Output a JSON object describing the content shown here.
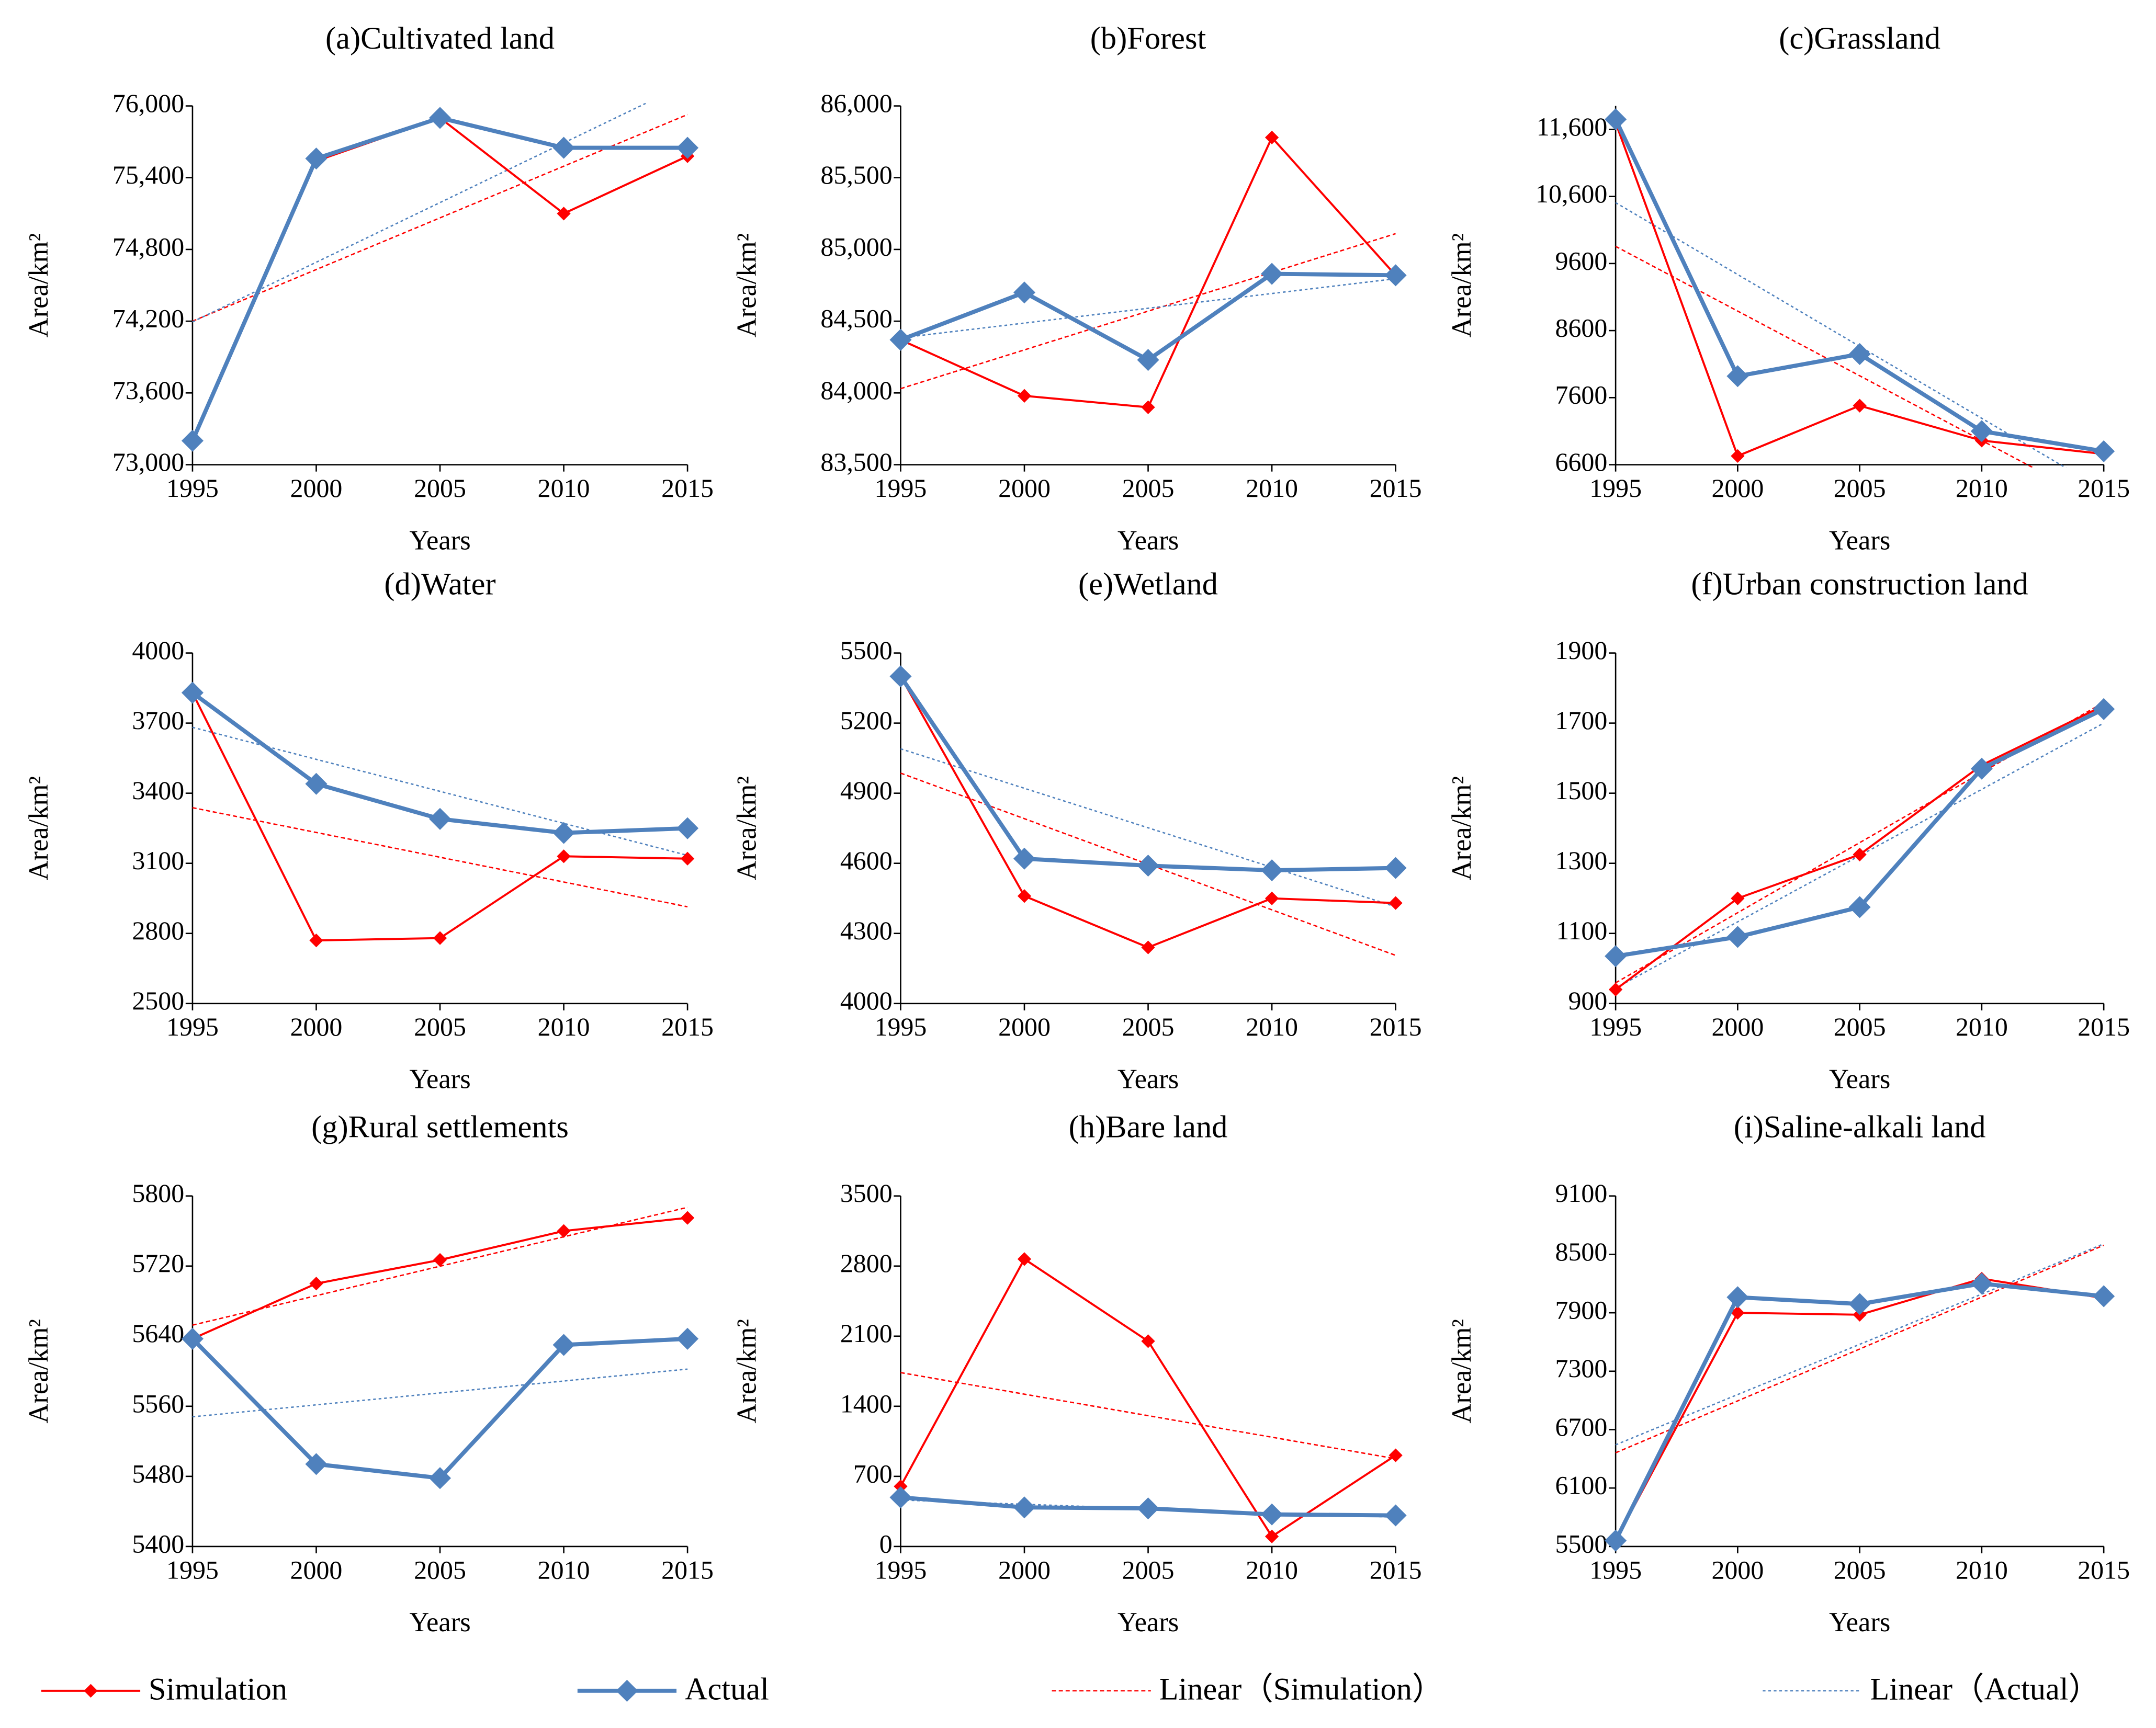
{
  "chart_data": [
    {
      "type": "line",
      "title": "(a)Cultivated land",
      "x_label": "Years",
      "y_label": "Area/km²",
      "x": [
        1995,
        2000,
        2005,
        2010,
        2015
      ],
      "xlim": [
        1995,
        2015
      ],
      "xticks": [
        1995,
        2000,
        2005,
        2010,
        2015
      ],
      "ylim": [
        73000,
        76000
      ],
      "yticks": [
        {
          "value": 73000,
          "label": "73,000"
        },
        {
          "value": 73600,
          "label": "73,600"
        },
        {
          "value": 74200,
          "label": "74,200"
        },
        {
          "value": 74800,
          "label": "74,800"
        },
        {
          "value": 75400,
          "label": "75,400"
        },
        {
          "value": 76000,
          "label": "76,000"
        }
      ],
      "series": [
        {
          "name": "Simulation",
          "trend_name": "Linear（Simulation）",
          "color": "#ff0000",
          "values": [
            73200,
            75540,
            75900,
            75100,
            75580
          ]
        },
        {
          "name": "Actual",
          "trend_name": "Linear（Actual）",
          "color": "#4f81bd",
          "values": [
            73200,
            75560,
            75900,
            75650,
            75650
          ]
        }
      ]
    },
    {
      "type": "line",
      "title": "(b)Forest",
      "x_label": "Years",
      "y_label": "Area/km²",
      "x": [
        1995,
        2000,
        2005,
        2010,
        2015
      ],
      "xlim": [
        1995,
        2015
      ],
      "xticks": [
        1995,
        2000,
        2005,
        2010,
        2015
      ],
      "ylim": [
        83500,
        86000
      ],
      "yticks": [
        {
          "value": 83500,
          "label": "83,500"
        },
        {
          "value": 84000,
          "label": "84,000"
        },
        {
          "value": 84500,
          "label": "84,500"
        },
        {
          "value": 85000,
          "label": "85,000"
        },
        {
          "value": 85500,
          "label": "85,500"
        },
        {
          "value": 86000,
          "label": "86,000"
        }
      ],
      "series": [
        {
          "name": "Simulation",
          "color": "#ff0000",
          "values": [
            84370,
            83980,
            83900,
            85780,
            84820
          ]
        },
        {
          "name": "Actual",
          "color": "#4f81bd",
          "values": [
            84370,
            84700,
            84230,
            84830,
            84820
          ]
        }
      ]
    },
    {
      "type": "line",
      "title": "(c)Grassland",
      "x_label": "Years",
      "y_label": "Area/km²",
      "x": [
        1995,
        2000,
        2005,
        2010,
        2015
      ],
      "xlim": [
        1995,
        2015
      ],
      "xticks": [
        1995,
        2000,
        2005,
        2010,
        2015
      ],
      "ylim": [
        6600,
        11950
      ],
      "yticks": [
        6600,
        7600,
        8600,
        9600,
        {
          "value": 10600,
          "label": "10,600"
        },
        {
          "value": 11600,
          "label": "11,600"
        }
      ],
      "series": [
        {
          "name": "Simulation",
          "color": "#ff0000",
          "values": [
            11700,
            6730,
            7480,
            6960,
            6760
          ]
        },
        {
          "name": "Actual",
          "color": "#4f81bd",
          "values": [
            11750,
            7920,
            8250,
            7100,
            6800
          ]
        }
      ]
    },
    {
      "type": "line",
      "title": "(d)Water",
      "x_label": "Years",
      "y_label": "Area/km²",
      "x": [
        1995,
        2000,
        2005,
        2010,
        2015
      ],
      "xlim": [
        1995,
        2015
      ],
      "xticks": [
        1995,
        2000,
        2005,
        2010,
        2015
      ],
      "ylim": [
        2500,
        4000
      ],
      "yticks": [
        2500,
        2800,
        3100,
        3400,
        3700,
        4000
      ],
      "series": [
        {
          "name": "Simulation",
          "color": "#ff0000",
          "values": [
            3830,
            2770,
            2780,
            3130,
            3120
          ]
        },
        {
          "name": "Actual",
          "color": "#4f81bd",
          "values": [
            3830,
            3440,
            3290,
            3230,
            3250
          ]
        }
      ]
    },
    {
      "type": "line",
      "title": "(e)Wetland",
      "x_label": "Years",
      "y_label": "Area/km²",
      "x": [
        1995,
        2000,
        2005,
        2010,
        2015
      ],
      "xlim": [
        1995,
        2015
      ],
      "xticks": [
        1995,
        2000,
        2005,
        2010,
        2015
      ],
      "ylim": [
        4000,
        5500
      ],
      "yticks": [
        4000,
        4300,
        4600,
        4900,
        5200,
        5500
      ],
      "series": [
        {
          "name": "Simulation",
          "color": "#ff0000",
          "values": [
            5400,
            4460,
            4240,
            4450,
            4430
          ]
        },
        {
          "name": "Actual",
          "color": "#4f81bd",
          "values": [
            5400,
            4620,
            4590,
            4570,
            4580
          ]
        }
      ]
    },
    {
      "type": "line",
      "title": "(f)Urban construction land",
      "x_label": "Years",
      "y_label": "Area/km²",
      "x": [
        1995,
        2000,
        2005,
        2010,
        2015
      ],
      "xlim": [
        1995,
        2015
      ],
      "xticks": [
        1995,
        2000,
        2005,
        2010,
        2015
      ],
      "ylim": [
        900,
        1900
      ],
      "yticks": [
        900,
        1100,
        1300,
        1500,
        1700,
        1900
      ],
      "series": [
        {
          "name": "Simulation",
          "color": "#ff0000",
          "values": [
            940,
            1200,
            1325,
            1580,
            1750
          ]
        },
        {
          "name": "Actual",
          "color": "#4f81bd",
          "values": [
            1035,
            1090,
            1175,
            1570,
            1740
          ]
        }
      ]
    },
    {
      "type": "line",
      "title": "(g)Rural settlements",
      "x_label": "Years",
      "y_label": "Area/km²",
      "x": [
        1995,
        2000,
        2005,
        2010,
        2015
      ],
      "xlim": [
        1995,
        2015
      ],
      "xticks": [
        1995,
        2000,
        2005,
        2010,
        2015
      ],
      "ylim": [
        5400,
        5800
      ],
      "yticks": [
        5400,
        5480,
        5560,
        5640,
        5720,
        5800
      ],
      "series": [
        {
          "name": "Simulation",
          "color": "#ff0000",
          "values": [
            5637,
            5700,
            5727,
            5760,
            5775
          ]
        },
        {
          "name": "Actual",
          "color": "#4f81bd",
          "values": [
            5637,
            5494,
            5478,
            5630,
            5637
          ]
        }
      ]
    },
    {
      "type": "line",
      "title": "(h)Bare land",
      "x_label": "Years",
      "y_label": "Area/km²",
      "x": [
        1995,
        2000,
        2005,
        2010,
        2015
      ],
      "xlim": [
        1995,
        2015
      ],
      "xticks": [
        1995,
        2000,
        2005,
        2010,
        2015
      ],
      "ylim": [
        0,
        3500
      ],
      "yticks": [
        0,
        700,
        1400,
        2100,
        2800,
        3500
      ],
      "series": [
        {
          "name": "Simulation",
          "color": "#ff0000",
          "values": [
            600,
            2870,
            2050,
            100,
            910
          ]
        },
        {
          "name": "Actual",
          "color": "#4f81bd",
          "values": [
            490,
            390,
            380,
            320,
            310
          ]
        }
      ]
    },
    {
      "type": "line",
      "title": "(i)Saline-alkali land",
      "x_label": "Years",
      "y_label": "Area/km²",
      "x": [
        1995,
        2000,
        2005,
        2010,
        2015
      ],
      "xlim": [
        1995,
        2015
      ],
      "xticks": [
        1995,
        2000,
        2005,
        2010,
        2015
      ],
      "ylim": [
        5500,
        9100
      ],
      "yticks": [
        5500,
        6100,
        6700,
        7300,
        7900,
        8500,
        9100
      ],
      "series": [
        {
          "name": "Simulation",
          "color": "#ff0000",
          "values": [
            5560,
            7900,
            7880,
            8250,
            8050
          ]
        },
        {
          "name": "Actual",
          "color": "#4f81bd",
          "values": [
            5560,
            8060,
            7990,
            8200,
            8070
          ]
        }
      ]
    }
  ]
}
